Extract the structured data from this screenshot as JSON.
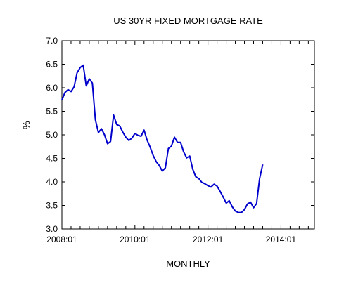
{
  "chart_data": {
    "type": "line",
    "title": "US 30YR FIXED MORTGAGE RATE",
    "xlabel": "MONTHLY",
    "ylabel": "%",
    "ylim": [
      3.0,
      7.0
    ],
    "yticks": [
      "3.0",
      "3.5",
      "4.0",
      "4.5",
      "5.0",
      "5.5",
      "6.0",
      "6.5",
      "7.0"
    ],
    "xticks": [
      "2008:01",
      "2010:01",
      "2012:01",
      "2014:01"
    ],
    "xlim": [
      "2008-01",
      "2014-12"
    ],
    "grid": false,
    "line_color": "#0000cc",
    "series": [
      {
        "x": [
          "2008-01",
          "2008-02",
          "2008-03",
          "2008-04",
          "2008-05",
          "2008-06",
          "2008-07",
          "2008-08",
          "2008-09",
          "2008-10",
          "2008-11",
          "2008-12",
          "2009-01",
          "2009-02",
          "2009-03",
          "2009-04",
          "2009-05",
          "2009-06",
          "2009-07",
          "2009-08",
          "2009-09",
          "2009-10",
          "2009-11",
          "2009-12",
          "2010-01",
          "2010-02",
          "2010-03",
          "2010-04",
          "2010-05",
          "2010-06",
          "2010-07",
          "2010-08",
          "2010-09",
          "2010-10",
          "2010-11",
          "2010-12",
          "2011-01",
          "2011-02",
          "2011-03",
          "2011-04",
          "2011-05",
          "2011-06",
          "2011-07",
          "2011-08",
          "2011-09",
          "2011-10",
          "2011-11",
          "2011-12",
          "2012-01",
          "2012-02",
          "2012-03",
          "2012-04",
          "2012-05",
          "2012-06",
          "2012-07",
          "2012-08",
          "2012-09",
          "2012-10",
          "2012-11",
          "2012-12",
          "2013-01",
          "2013-02",
          "2013-03",
          "2013-04",
          "2013-05",
          "2013-06",
          "2013-07"
        ],
        "values": [
          5.74,
          5.9,
          5.96,
          5.92,
          6.02,
          6.32,
          6.43,
          6.48,
          6.04,
          6.19,
          6.1,
          5.32,
          5.05,
          5.13,
          5.0,
          4.81,
          4.86,
          5.42,
          5.22,
          5.19,
          5.06,
          4.95,
          4.88,
          4.93,
          5.03,
          4.99,
          4.97,
          5.1,
          4.89,
          4.74,
          4.56,
          4.43,
          4.35,
          4.23,
          4.3,
          4.71,
          4.76,
          4.95,
          4.84,
          4.84,
          4.64,
          4.51,
          4.55,
          4.27,
          4.11,
          4.07,
          3.99,
          3.96,
          3.92,
          3.89,
          3.95,
          3.91,
          3.8,
          3.68,
          3.55,
          3.6,
          3.47,
          3.38,
          3.35,
          3.35,
          3.41,
          3.53,
          3.57,
          3.45,
          3.54,
          4.07,
          4.37
        ]
      }
    ]
  }
}
